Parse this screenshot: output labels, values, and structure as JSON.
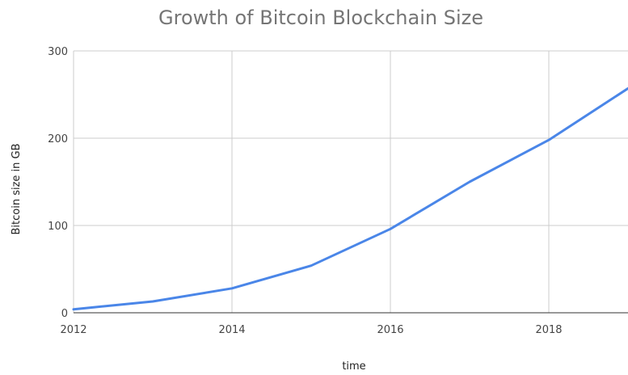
{
  "chart_data": {
    "type": "line",
    "title": "Growth of Bitcoin Blockchain Size",
    "xlabel": "time",
    "ylabel": "Bitcoin size in GB",
    "xlim": [
      2012,
      2019
    ],
    "ylim": [
      0,
      300
    ],
    "x_ticks": [
      2012,
      2014,
      2016,
      2018
    ],
    "y_ticks": [
      0,
      100,
      200,
      300
    ],
    "grid": true,
    "legend": "none",
    "series": [
      {
        "color": "#4a86e8",
        "points": [
          {
            "x": 2012,
            "y": 4
          },
          {
            "x": 2013,
            "y": 13
          },
          {
            "x": 2014,
            "y": 28
          },
          {
            "x": 2015,
            "y": 54
          },
          {
            "x": 2016,
            "y": 96
          },
          {
            "x": 2017,
            "y": 150
          },
          {
            "x": 2018,
            "y": 198
          },
          {
            "x": 2019,
            "y": 257
          }
        ]
      }
    ]
  }
}
